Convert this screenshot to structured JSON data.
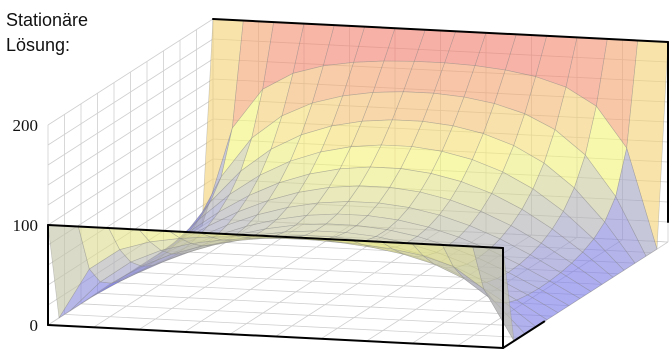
{
  "chart_data": {
    "type": "surface3d",
    "title_lines": [
      "Stationäre",
      "Lösung:"
    ],
    "z_ticks": [
      "0",
      "100",
      "200"
    ],
    "zlim": [
      0,
      200
    ],
    "grid": true,
    "boundary_values": {
      "back_edge": 200,
      "front_edge": 100,
      "left_edge": 0,
      "right_edge": 0
    },
    "surface_grid_size": 15,
    "colormap": [
      "#6f6ff2",
      "#f5f57a",
      "#f26f6f"
    ]
  }
}
